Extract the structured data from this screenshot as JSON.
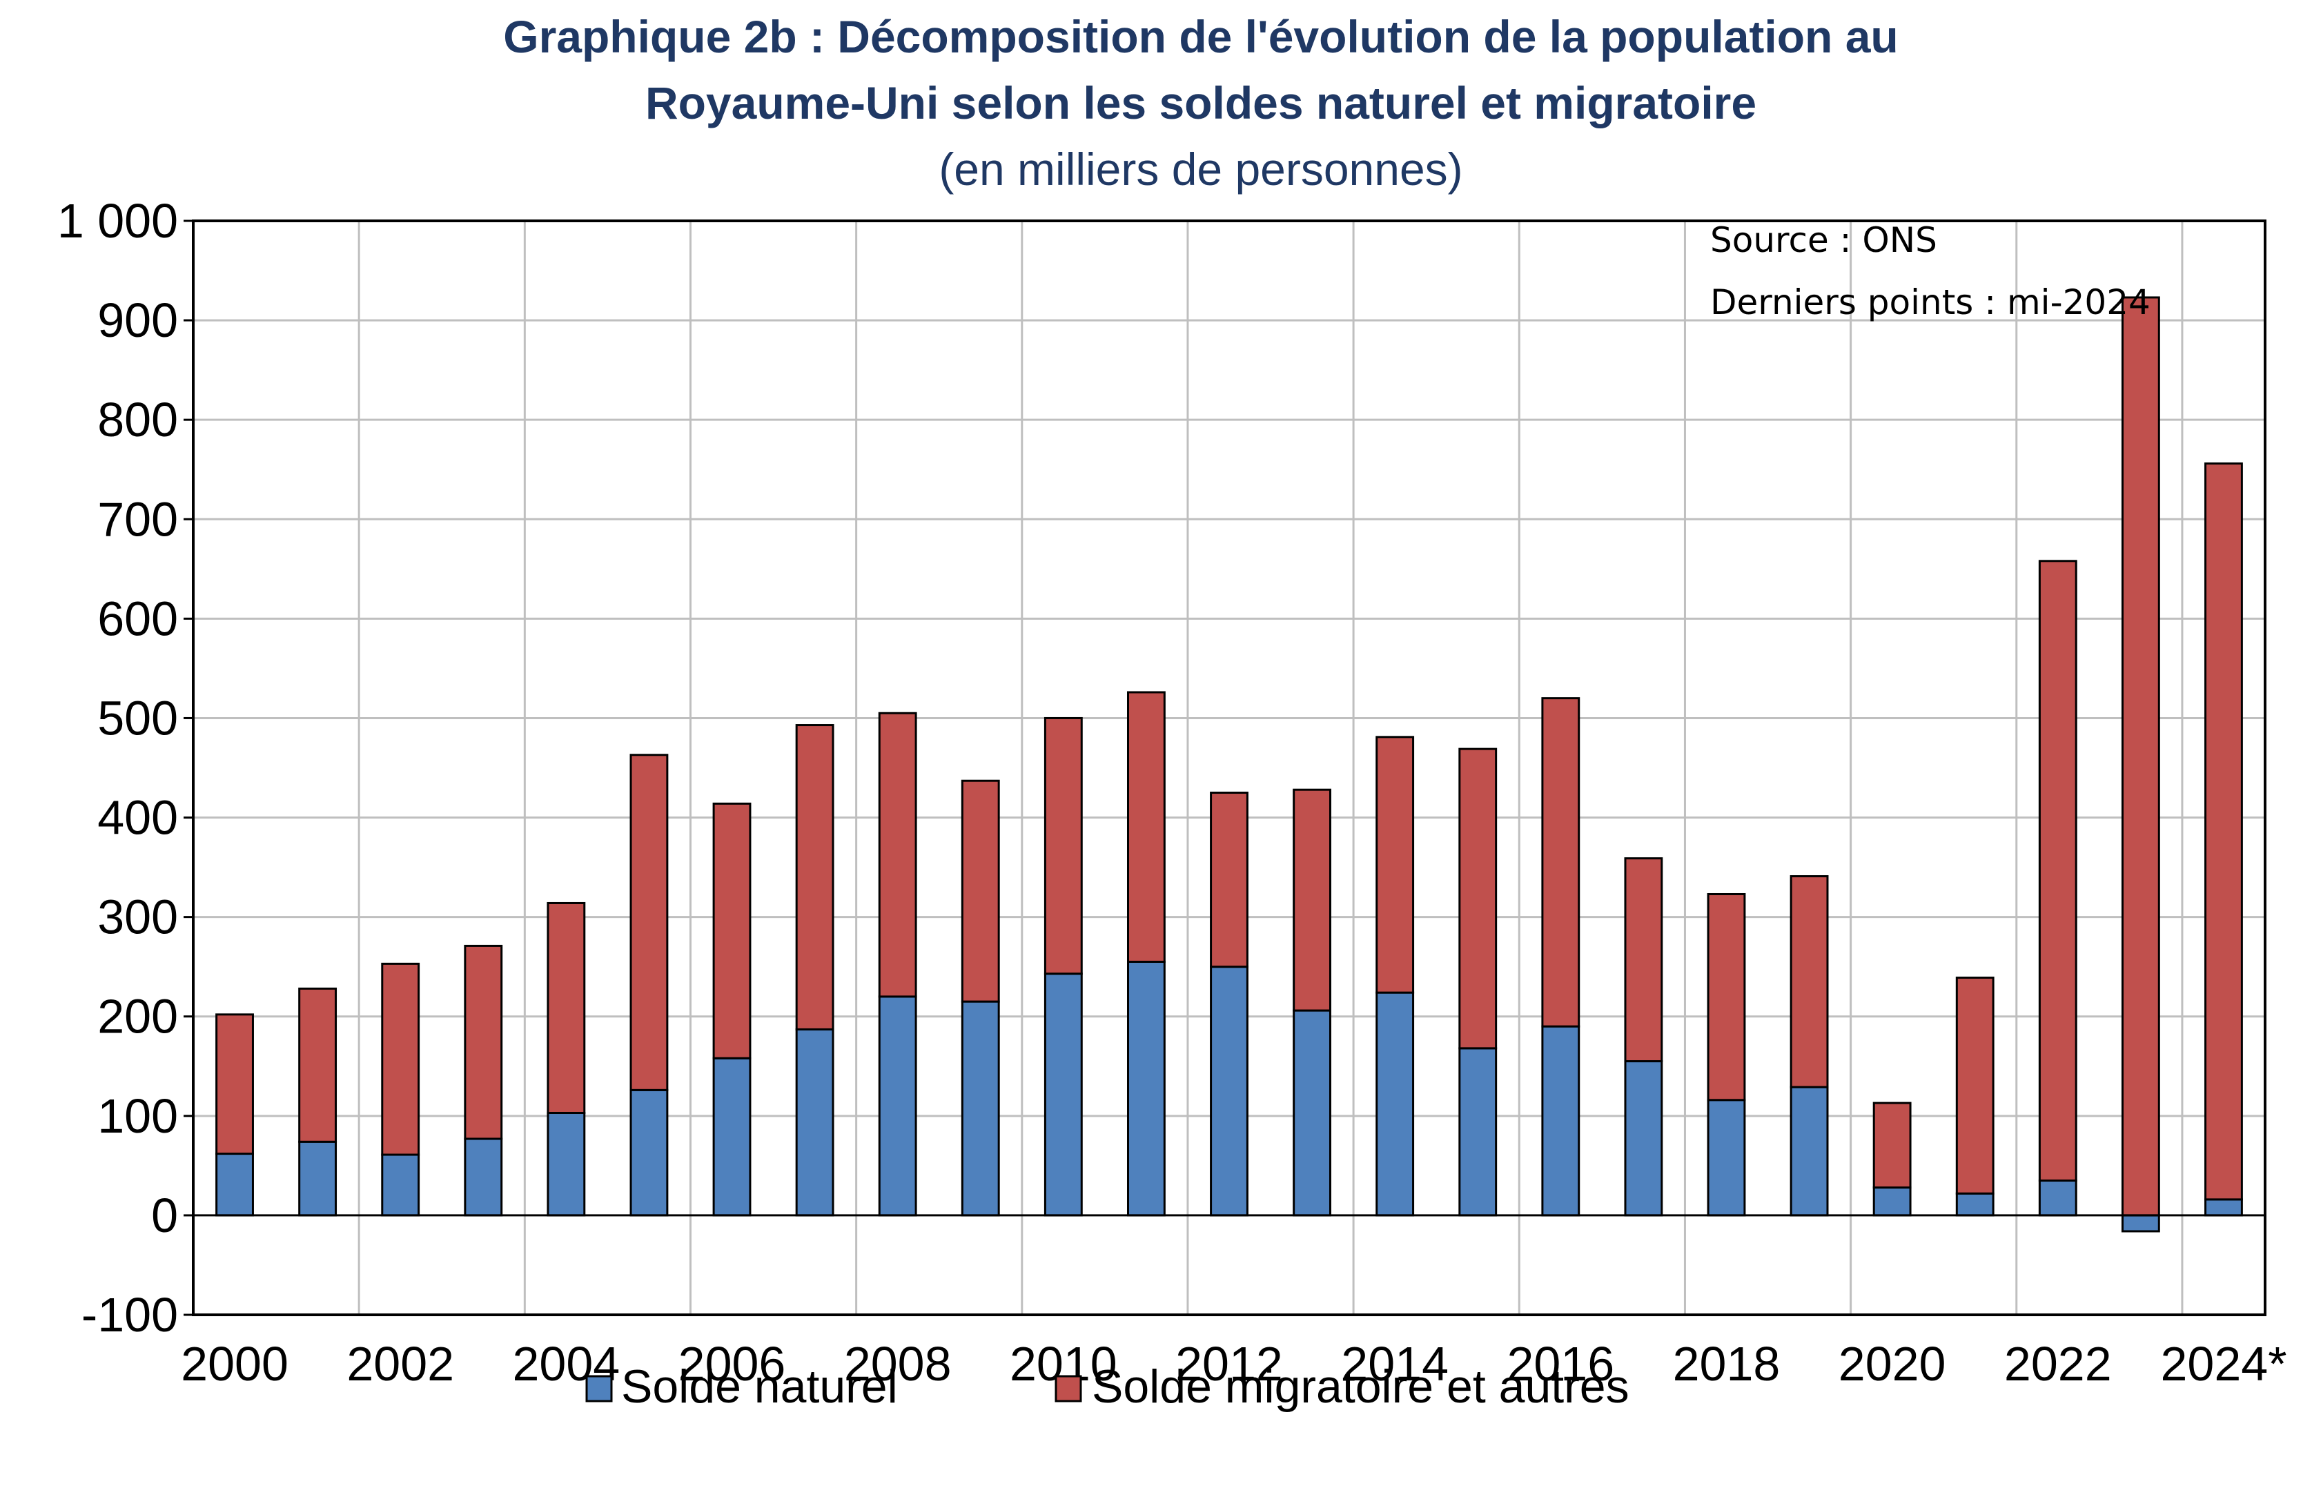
{
  "title_line1": "Graphique 2b : Décomposition de l'évolution de la population au",
  "title_line2": "Royaume-Uni selon les soldes naturel et migratoire",
  "subtitle": "(en milliers de personnes)",
  "source_note": "Source  : ONS",
  "last_points_note": "Derniers points : mi-2024",
  "colors": {
    "solde_naturel": "#4F81BD",
    "solde_migratoire": "#C0504D",
    "title": "#1F3864",
    "grid": "#BFBFBF"
  },
  "chart_data": {
    "type": "bar",
    "stacked": true,
    "categories": [
      "2000",
      "2001",
      "2002",
      "2003",
      "2004",
      "2005",
      "2006",
      "2007",
      "2008",
      "2009",
      "2010",
      "2011",
      "2012",
      "2013",
      "2014",
      "2015",
      "2016",
      "2017",
      "2018",
      "2019",
      "2020",
      "2021",
      "2022",
      "2023",
      "2024*"
    ],
    "x_tick_labels": [
      "2000",
      "2002",
      "2004",
      "2006",
      "2008",
      "2010",
      "2012",
      "2014",
      "2016",
      "2018",
      "2020",
      "2022",
      "2024*"
    ],
    "y_tick_labels": [
      "-100",
      "0",
      "100",
      "200",
      "300",
      "400",
      "500",
      "600",
      "700",
      "800",
      "900",
      "1 000"
    ],
    "ylim": [
      -100,
      1000
    ],
    "ytick_step": 100,
    "grid": true,
    "legend_position": "bottom",
    "series": [
      {
        "name": "Solde naturel",
        "values": [
          62,
          74,
          61,
          77,
          103,
          126,
          158,
          187,
          220,
          215,
          243,
          255,
          250,
          206,
          224,
          168,
          190,
          155,
          116,
          129,
          28,
          22,
          35,
          -16,
          16
        ]
      },
      {
        "name": "Solde migratoire et autres",
        "values": [
          140,
          154,
          192,
          194,
          211,
          337,
          256,
          306,
          285,
          222,
          257,
          271,
          175,
          222,
          257,
          301,
          330,
          204,
          207,
          212,
          85,
          217,
          623,
          923,
          740
        ]
      }
    ]
  }
}
